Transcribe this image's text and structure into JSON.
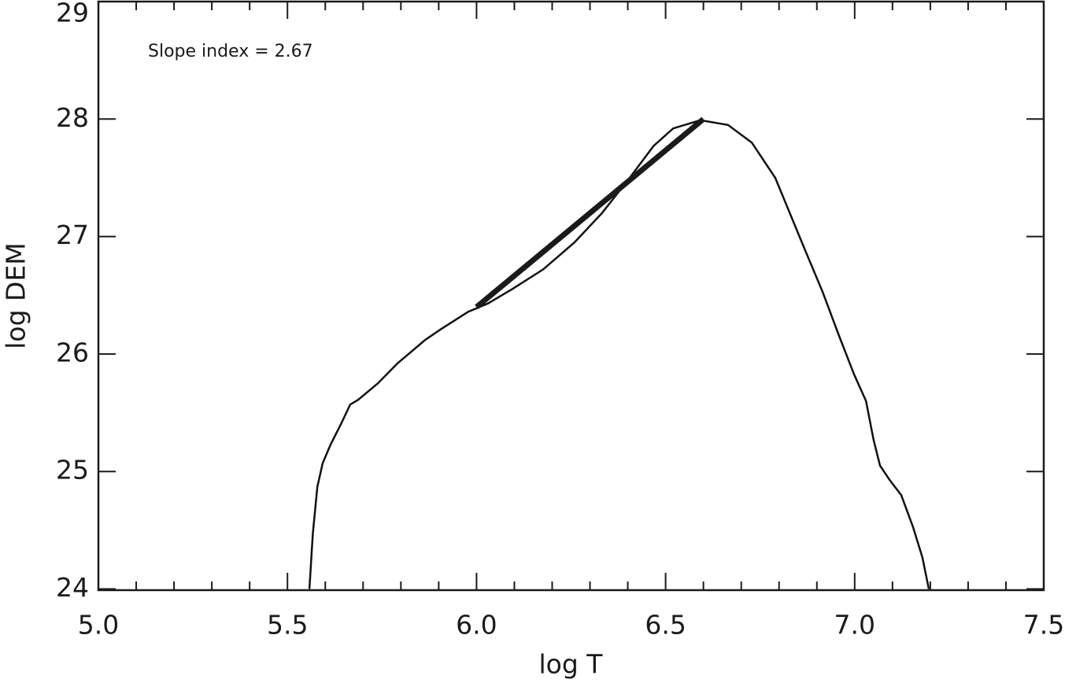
{
  "chart_data": {
    "type": "line",
    "annotation": "Slope index = 2.67",
    "xlabel": "log T",
    "ylabel": "log DEM",
    "x": [
      5.558,
      5.567,
      5.579,
      5.593,
      5.614,
      5.641,
      5.666,
      5.687,
      5.739,
      5.791,
      5.864,
      5.905,
      5.978,
      6.03,
      6.093,
      6.176,
      6.259,
      6.332,
      6.405,
      6.468,
      6.52,
      6.592,
      6.665,
      6.728,
      6.79,
      6.863,
      6.915,
      6.957,
      6.998,
      7.03,
      7.05,
      7.067,
      7.092,
      7.123,
      7.154,
      7.179,
      7.196
    ],
    "values": [
      24.0,
      24.47,
      24.87,
      25.07,
      25.23,
      25.4,
      25.57,
      25.61,
      25.75,
      25.92,
      26.12,
      26.21,
      26.36,
      26.43,
      26.55,
      26.72,
      26.95,
      27.2,
      27.5,
      27.77,
      27.92,
      27.99,
      27.95,
      27.8,
      27.5,
      26.93,
      26.53,
      26.17,
      25.83,
      25.6,
      25.27,
      25.05,
      24.93,
      24.8,
      24.53,
      24.27,
      24.0
    ],
    "color": "#111111",
    "fit_line": {
      "x": [
        6.0,
        6.6
      ],
      "values": [
        26.4,
        28.0
      ],
      "color": "#1a1a1a"
    },
    "xlim": [
      5.0,
      7.5
    ],
    "ylim": [
      23.99,
      29.0
    ],
    "xticks": [
      {
        "value": 5.0,
        "label": "5.0"
      },
      5.5,
      {
        "value": 6.0,
        "label": "6.0"
      },
      6.5,
      {
        "value": 7.0,
        "label": "7.0"
      },
      7.5
    ],
    "xminorticks": [
      5.1,
      5.2,
      5.3,
      5.4,
      5.6,
      5.7,
      5.8,
      5.9,
      6.1,
      6.2,
      6.3,
      6.4,
      6.6,
      6.7,
      6.8,
      6.9,
      7.1,
      7.2,
      7.3,
      7.4
    ],
    "yticks": [
      24,
      25,
      26,
      27,
      28,
      29
    ]
  }
}
